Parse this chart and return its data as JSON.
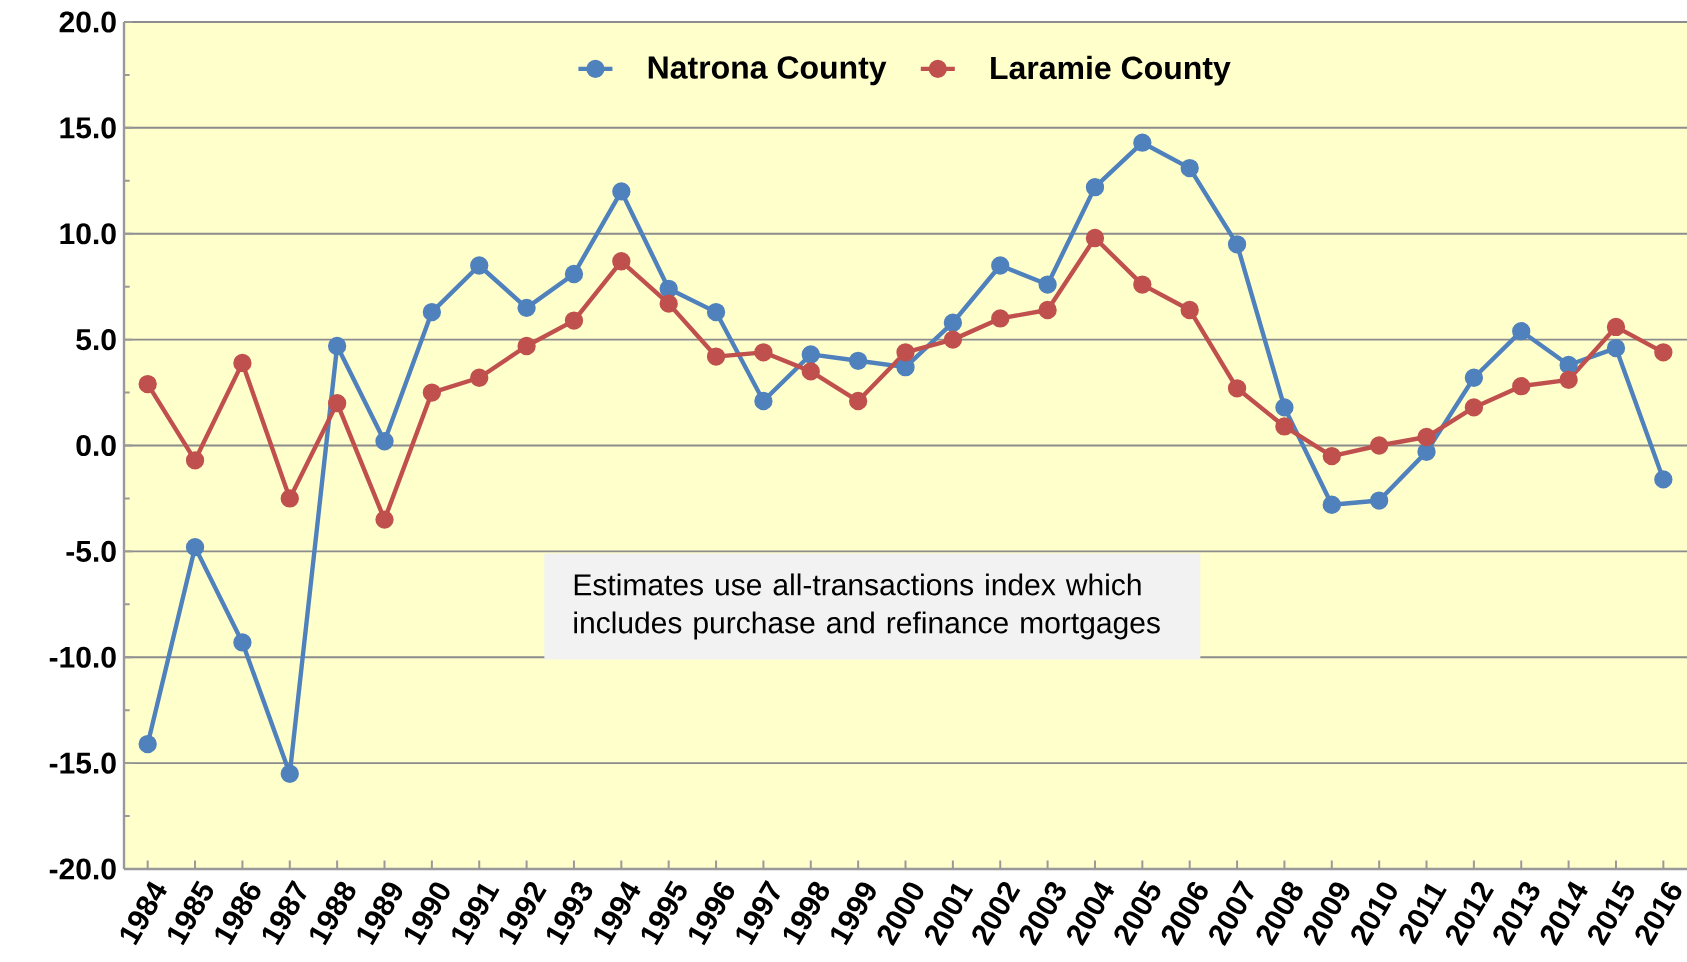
{
  "chart_data": {
    "type": "line",
    "categories": [
      "1984",
      "1985",
      "1986",
      "1987",
      "1988",
      "1989",
      "1990",
      "1991",
      "1992",
      "1993",
      "1994",
      "1995",
      "1996",
      "1997",
      "1998",
      "1999",
      "2000",
      "2001",
      "2002",
      "2003",
      "2004",
      "2005",
      "2006",
      "2007",
      "2008",
      "2009",
      "2010",
      "2011",
      "2012",
      "2013",
      "2014",
      "2015",
      "2016"
    ],
    "series": [
      {
        "name": "Natrona County",
        "color": "#4f81bd",
        "values": [
          -14.1,
          -4.8,
          -9.3,
          -15.5,
          4.7,
          0.2,
          6.3,
          8.5,
          6.5,
          8.1,
          12.0,
          7.4,
          6.3,
          2.1,
          4.3,
          4.0,
          3.7,
          5.8,
          8.5,
          7.6,
          12.2,
          14.3,
          13.1,
          9.5,
          1.8,
          -2.8,
          -2.6,
          -0.3,
          3.2,
          5.4,
          3.8,
          4.6,
          -1.6
        ]
      },
      {
        "name": "Laramie County",
        "color": "#c0504d",
        "values": [
          2.9,
          -0.7,
          3.9,
          -2.5,
          2.0,
          -3.5,
          2.5,
          3.2,
          4.7,
          5.9,
          8.7,
          6.7,
          4.2,
          4.4,
          3.5,
          2.1,
          4.4,
          5.0,
          6.0,
          6.4,
          9.8,
          7.6,
          6.4,
          2.7,
          0.9,
          -0.5,
          0.0,
          0.4,
          1.8,
          2.8,
          3.1,
          5.6,
          4.4
        ]
      }
    ],
    "ylim": [
      -20,
      20
    ],
    "yticks": [
      {
        "value": -20,
        "label": "-20.0"
      },
      {
        "value": -15,
        "label": "-15.0"
      },
      {
        "value": -10,
        "label": "-10.0"
      },
      {
        "value": -5,
        "label": "-5.0"
      },
      {
        "value": 0,
        "label": "0.0"
      },
      {
        "value": 5,
        "label": "5.0"
      },
      {
        "value": 10,
        "label": "10.0"
      },
      {
        "value": 15,
        "label": "15.0"
      },
      {
        "value": 20,
        "label": "20.0"
      }
    ],
    "grid": "y",
    "legend": "top",
    "marker": "circle",
    "line_style": "solid",
    "annotations": [
      "Estimates use all-transactions index which includes purchase and refinance mortgages"
    ]
  }
}
